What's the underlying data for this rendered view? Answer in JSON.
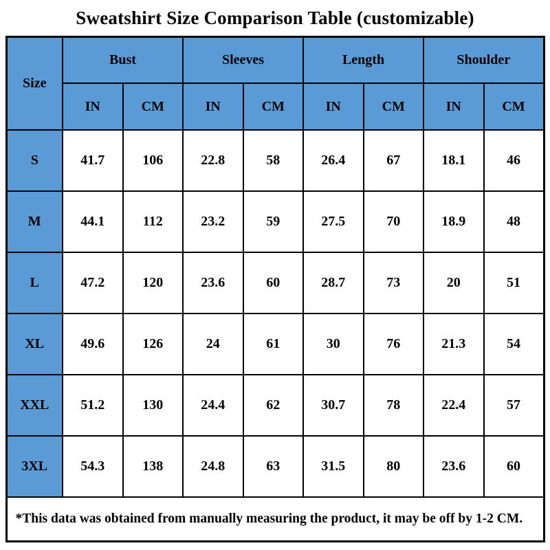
{
  "title": "Sweatshirt Size Comparison Table (customizable)",
  "table": {
    "size_header": "Size",
    "groups": [
      {
        "label": "Bust"
      },
      {
        "label": "Sleeves"
      },
      {
        "label": "Length"
      },
      {
        "label": "Shoulder"
      }
    ],
    "unit_headers": [
      "IN",
      "CM",
      "IN",
      "CM",
      "IN",
      "CM",
      "IN",
      "CM"
    ],
    "rows": [
      {
        "size": "S",
        "values": [
          "41.7",
          "106",
          "22.8",
          "58",
          "26.4",
          "67",
          "18.1",
          "46"
        ]
      },
      {
        "size": "M",
        "values": [
          "44.1",
          "112",
          "23.2",
          "59",
          "27.5",
          "70",
          "18.9",
          "48"
        ]
      },
      {
        "size": "L",
        "values": [
          "47.2",
          "120",
          "23.6",
          "60",
          "28.7",
          "73",
          "20",
          "51"
        ]
      },
      {
        "size": "XL",
        "values": [
          "49.6",
          "126",
          "24",
          "61",
          "30",
          "76",
          "21.3",
          "54"
        ]
      },
      {
        "size": "XXL",
        "values": [
          "51.2",
          "130",
          "24.4",
          "62",
          "30.7",
          "78",
          "22.4",
          "57"
        ]
      },
      {
        "size": "3XL",
        "values": [
          "54.3",
          "138",
          "24.8",
          "63",
          "31.5",
          "80",
          "23.6",
          "60"
        ]
      }
    ],
    "footnote": "*This data was obtained from manually measuring the product, it may be off by 1-2 CM."
  },
  "colors": {
    "header_bg": "#5b9bd5",
    "cell_bg": "#ffffff",
    "border": "#000000",
    "text": "#000000"
  }
}
